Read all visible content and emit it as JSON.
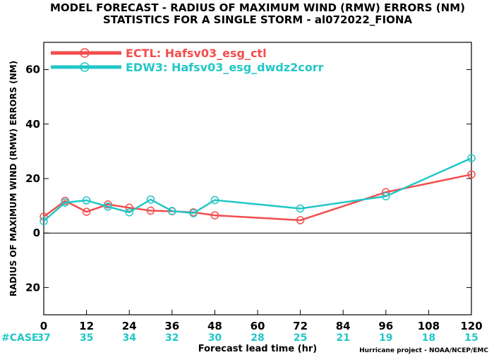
{
  "chart_data": {
    "type": "line",
    "title_line1": "MODEL FORECAST - RADIUS OF MAXIMUM WIND (RMW) ERRORS (NM)",
    "title_line2": "STATISTICS FOR A SINGLE STORM - al072022_FIONA",
    "xlabel": "Forecast lead time (hr)",
    "ylabel": "RADIUS OF MAXIMUM WIND (RMW) ERRORS (NM)",
    "xlim": [
      0,
      120
    ],
    "ylim": [
      -30,
      70
    ],
    "xticks": [
      0,
      12,
      24,
      36,
      48,
      60,
      72,
      84,
      96,
      108,
      120
    ],
    "yticks": [
      -20,
      0,
      20,
      40,
      60
    ],
    "ytick_labels": [
      "20",
      "0",
      "20",
      "40",
      "60"
    ],
    "zero_line": true,
    "grid": false,
    "legend_position": "top-left",
    "case_label": "#CASE",
    "case_counts": [
      "37",
      "35",
      "34",
      "32",
      "30",
      "28",
      "25",
      "21",
      "19",
      "18",
      "15"
    ],
    "credit": "Hurricane project - NOAA/NCEP/EMC",
    "series": [
      {
        "name": "ECTL: Hafsv03_esg_ctl",
        "color": "#f24d4d",
        "x": [
          0,
          6,
          12,
          18,
          24,
          30,
          36,
          42,
          48,
          72,
          96,
          120
        ],
        "y": [
          6.0,
          11.8,
          7.8,
          10.5,
          9.3,
          8.2,
          8.0,
          7.6,
          6.5,
          4.7,
          15.0,
          21.5
        ]
      },
      {
        "name": "EDW3: Hafsv03_esg_dwdz2corr",
        "color": "#22c7c7",
        "x": [
          0,
          6,
          12,
          18,
          24,
          30,
          36,
          42,
          48,
          72,
          96,
          120
        ],
        "y": [
          4.4,
          11.2,
          12.0,
          9.7,
          7.6,
          12.3,
          8.1,
          7.3,
          12.1,
          9.0,
          13.5,
          27.5
        ]
      }
    ]
  }
}
